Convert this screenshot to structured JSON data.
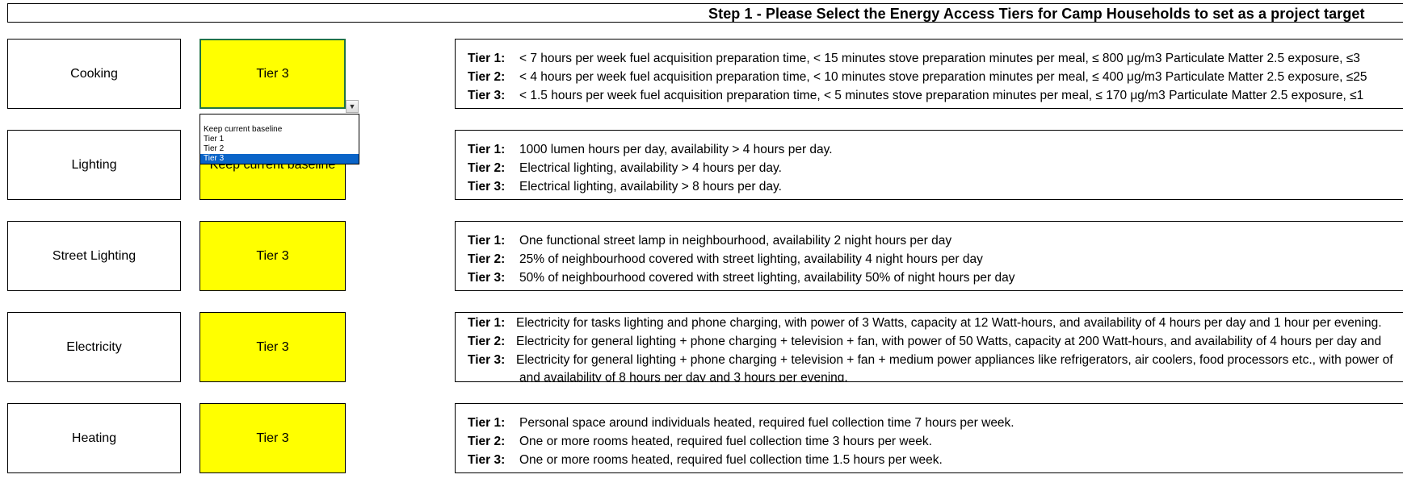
{
  "title": "Step 1 - Please Select the Energy Access Tiers for Camp Households to set as a project target",
  "rows": [
    {
      "label": "Cooking",
      "value": "Tier 3",
      "tiers": [
        {
          "tag": "Tier 1:",
          "text": "< 7 hours per week fuel acquisition preparation time,   < 15 minutes stove preparation minutes per meal,   ≤ 800 μg/m3 Particulate Matter 2.5 exposure,   ≤3"
        },
        {
          "tag": "Tier 2:",
          "text": "< 4 hours per week fuel acquisition preparation time,   < 10 minutes stove preparation minutes per meal,   ≤ 400 μg/m3 Particulate Matter 2.5 exposure,   ≤25"
        },
        {
          "tag": "Tier 3:",
          "text": "< 1.5 hours per week fuel acquisition preparation time,   < 5 minutes stove preparation minutes per meal,   ≤ 170 μg/m3 Particulate Matter 2.5 exposure,   ≤1"
        }
      ]
    },
    {
      "label": "Lighting",
      "value": "Keep current baseline",
      "tiers": [
        {
          "tag": "Tier 1:",
          "text": "1000 lumen hours per day, availability > 4 hours per day."
        },
        {
          "tag": "Tier 2:",
          "text": "Electrical lighting, availability > 4 hours per day."
        },
        {
          "tag": "Tier 3:",
          "text": "Electrical lighting, availability > 8 hours per day."
        }
      ]
    },
    {
      "label": "Street Lighting",
      "value": "Tier 3",
      "tiers": [
        {
          "tag": "Tier 1:",
          "text": "One functional street lamp in neighbourhood, availability 2 night hours per day"
        },
        {
          "tag": "Tier 2:",
          "text": "25% of neighbourhood covered with street lighting, availability 4 night hours per day"
        },
        {
          "tag": "Tier 3:",
          "text": "50% of neighbourhood covered with street lighting, availability 50% of night hours per day"
        }
      ]
    },
    {
      "label": "Electricity",
      "value": "Tier 3",
      "tiers": [
        {
          "tag": "Tier 1:",
          "text": "Electricity for tasks lighting and phone charging, with power of 3 Watts, capacity at 12 Watt-hours, and availability of 4 hours per day and 1 hour per evening."
        },
        {
          "tag": "Tier 2:",
          "text": "Electricity for general lighting + phone charging + television + fan, with power of 50 Watts, capacity at 200 Watt-hours, and availability of 4 hours per day and"
        },
        {
          "tag": "Tier 3:",
          "text": "Electricity for general lighting + phone charging + television + fan + medium power appliances like refrigerators, air coolers, food processors etc., with power of"
        },
        {
          "tag": "",
          "text": "and availability of 8 hours per day and 3 hours per evening."
        }
      ]
    },
    {
      "label": "Heating",
      "value": "Tier 3",
      "tiers": [
        {
          "tag": "Tier 1:",
          "text": "Personal space around individuals heated, required fuel collection time 7 hours per week."
        },
        {
          "tag": "Tier 2:",
          "text": "One or more rooms heated, required fuel collection time 3 hours per week."
        },
        {
          "tag": "Tier 3:",
          "text": "One or more rooms heated, required fuel collection time 1.5 hours per week."
        }
      ]
    }
  ],
  "dropdown": {
    "options": [
      "Keep current baseline",
      "Tier 1",
      "Tier 2",
      "Tier 3"
    ],
    "selected": "Tier 3",
    "arrow_icon": "chevron-down-icon"
  },
  "colors": {
    "tier_fill": "#ffff00",
    "active_cell_border": "#217346",
    "dropdown_selected": "#0a64c8"
  }
}
